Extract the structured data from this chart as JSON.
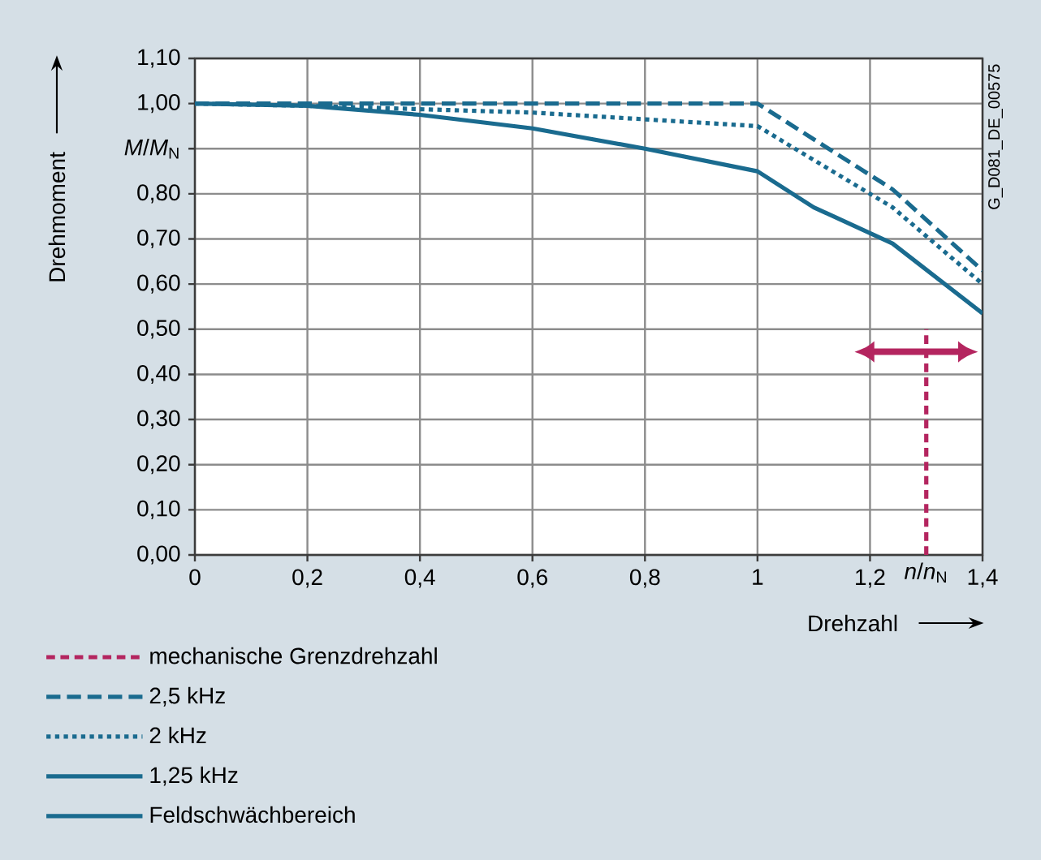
{
  "chart_data": {
    "type": "line",
    "xlabel": "Drehzahl",
    "ylabel": "Drehmoment",
    "xlim": [
      0,
      1.4
    ],
    "ylim": [
      0,
      1.1
    ],
    "xticks": [
      0,
      {
        "value": 0.2,
        "label": "0,2"
      },
      {
        "value": 0.4,
        "label": "0,4"
      },
      {
        "value": 0.6,
        "label": "0,6"
      },
      {
        "value": 0.8,
        "label": "0,8"
      },
      1,
      {
        "value": 1.2,
        "label": "1,2"
      },
      {
        "value": 1.3,
        "label": "*n*/*n*$_{N}$"
      },
      {
        "value": 1.4,
        "label": "1,4"
      }
    ],
    "yticks": [
      {
        "value": 0,
        "label": "0,00"
      },
      {
        "value": 0.1,
        "label": "0,10"
      },
      {
        "value": 0.2,
        "label": "0,20"
      },
      {
        "value": 0.3,
        "label": "0,30"
      },
      {
        "value": 0.4,
        "label": "0,40"
      },
      {
        "value": 0.5,
        "label": "0,50"
      },
      {
        "value": 0.6,
        "label": "0,60"
      },
      {
        "value": 0.7,
        "label": "0,70"
      },
      {
        "value": 0.8,
        "label": "0,80"
      },
      {
        "value": 0.9,
        "label": "*M*/*M*$_{N}$"
      },
      {
        "value": 1,
        "label": "1,00"
      },
      {
        "value": 1.1,
        "label": "1,10"
      }
    ],
    "grid": true,
    "legend": "bottom left",
    "series": [
      {
        "name": "2,5 kHz",
        "color": "#1a6b8f",
        "line_style": "dashed",
        "x": [
          0,
          1,
          1.24,
          1.4
        ],
        "values": [
          1,
          1,
          0.81,
          0.63
        ]
      },
      {
        "name": "2 kHz",
        "color": "#1a6b8f",
        "line_style": "dotted",
        "x": [
          0,
          0.2,
          0.6,
          1,
          1.24,
          1.4
        ],
        "values": [
          1,
          0.995,
          0.98,
          0.95,
          0.77,
          0.6
        ]
      },
      {
        "name": "1,25 kHz",
        "color": "#1a6b8f",
        "line_style": "solid",
        "x": [
          0,
          0.2,
          0.4,
          0.6,
          0.8,
          1,
          1.1,
          1.24,
          1.4
        ],
        "values": [
          1,
          0.995,
          0.975,
          0.945,
          0.9,
          0.85,
          0.77,
          0.69,
          0.535
        ]
      }
    ],
    "ref_lines": [
      {
        "axis": "x",
        "value": 1.3,
        "label": "mechanische Grenzdrehzahl",
        "color": "#b4255f",
        "line_style": "dashed"
      }
    ],
    "annotations": [
      "G_D081_DE_00575",
      "Feldschwächbereich"
    ]
  }
}
